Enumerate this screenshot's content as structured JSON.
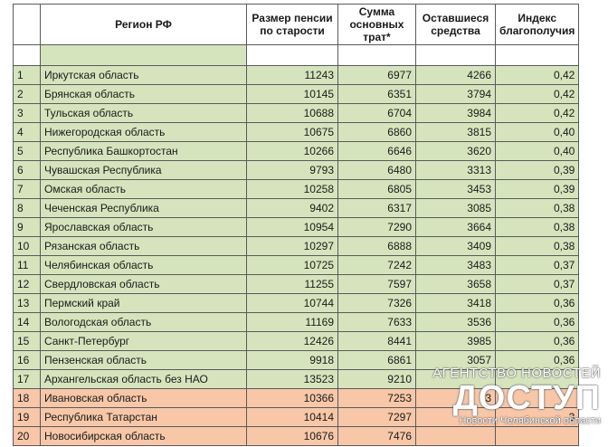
{
  "headers": {
    "num": "",
    "region": "Регион РФ",
    "pension": "Размер пенсии по старости",
    "expenses": "Сумма основных трат*",
    "remaining": "Оставшиеся средства",
    "index": "Индекс благополучия"
  },
  "rows": [
    {
      "n": "1",
      "region": "Иркутская область",
      "pension": "11243",
      "expenses": "6977",
      "remaining": "4266",
      "index": "0,42",
      "color": "#d5e4bd"
    },
    {
      "n": "2",
      "region": "Брянская область",
      "pension": "10145",
      "expenses": "6351",
      "remaining": "3794",
      "index": "0,42",
      "color": "#d5e4bd"
    },
    {
      "n": "3",
      "region": "Тульская область",
      "pension": "10688",
      "expenses": "6704",
      "remaining": "3984",
      "index": "0,42",
      "color": "#d5e4bd"
    },
    {
      "n": "4",
      "region": "Нижегородская область",
      "pension": "10675",
      "expenses": "6860",
      "remaining": "3815",
      "index": "0,40",
      "color": "#d5e4bd"
    },
    {
      "n": "5",
      "region": "Республика Башкортостан",
      "pension": "10266",
      "expenses": "6646",
      "remaining": "3620",
      "index": "0,40",
      "color": "#d5e4bd"
    },
    {
      "n": "6",
      "region": "Чувашская Республика",
      "pension": "9793",
      "expenses": "6480",
      "remaining": "3313",
      "index": "0,39",
      "color": "#d5e4bd"
    },
    {
      "n": "7",
      "region": "Омская область",
      "pension": "10258",
      "expenses": "6805",
      "remaining": "3453",
      "index": "0,39",
      "color": "#d5e4bd"
    },
    {
      "n": "8",
      "region": "Чеченская Республика",
      "pension": "9402",
      "expenses": "6317",
      "remaining": "3085",
      "index": "0,38",
      "color": "#d5e4bd"
    },
    {
      "n": "9",
      "region": "Ярославская область",
      "pension": "10954",
      "expenses": "7290",
      "remaining": "3664",
      "index": "0,38",
      "color": "#d5e4bd"
    },
    {
      "n": "10",
      "region": "Рязанская область",
      "pension": "10297",
      "expenses": "6888",
      "remaining": "3409",
      "index": "0,38",
      "color": "#d5e4bd"
    },
    {
      "n": "11",
      "region": "Челябинская область",
      "pension": "10725",
      "expenses": "7242",
      "remaining": "3483",
      "index": "0,37",
      "color": "#d5e4bd"
    },
    {
      "n": "12",
      "region": "Свердловская область",
      "pension": "11255",
      "expenses": "7597",
      "remaining": "3658",
      "index": "0,37",
      "color": "#d5e4bd"
    },
    {
      "n": "13",
      "region": "Пермский край",
      "pension": "10744",
      "expenses": "7326",
      "remaining": "3418",
      "index": "0,36",
      "color": "#d5e4bd"
    },
    {
      "n": "14",
      "region": "Вологодская область",
      "pension": "11169",
      "expenses": "7633",
      "remaining": "3536",
      "index": "0,36",
      "color": "#d5e4bd"
    },
    {
      "n": "15",
      "region": "Санкт-Петербург",
      "pension": "12426",
      "expenses": "8441",
      "remaining": "3985",
      "index": "0,36",
      "color": "#d5e4bd"
    },
    {
      "n": "16",
      "region": "Пензенская область",
      "pension": "9918",
      "expenses": "6861",
      "remaining": "3057",
      "index": "0,36",
      "color": "#d5e4bd"
    },
    {
      "n": "17",
      "region": "Архангельская область без НАО",
      "pension": "13523",
      "expenses": "9210",
      "remaining": "",
      "index": "",
      "color": "#d5e4bd"
    },
    {
      "n": "18",
      "region": "Ивановская область",
      "pension": "10366",
      "expenses": "7253",
      "remaining": "3",
      "index": "",
      "color": "#f7c7a8"
    },
    {
      "n": "19",
      "region": "Республика Татарстан",
      "pension": "10414",
      "expenses": "7297",
      "remaining": "",
      "index": "3",
      "color": "#f7c7a8"
    },
    {
      "n": "20",
      "region": "Новосибирская область",
      "pension": "10676",
      "expenses": "7476",
      "remaining": "",
      "index": "",
      "color": "#f7c7a8"
    }
  ],
  "watermark": {
    "line1": "АГЕНТСТВО НОВОСТЕЙ",
    "logo": "ДОСТУП",
    "line2": "Новости Челябинской области"
  }
}
